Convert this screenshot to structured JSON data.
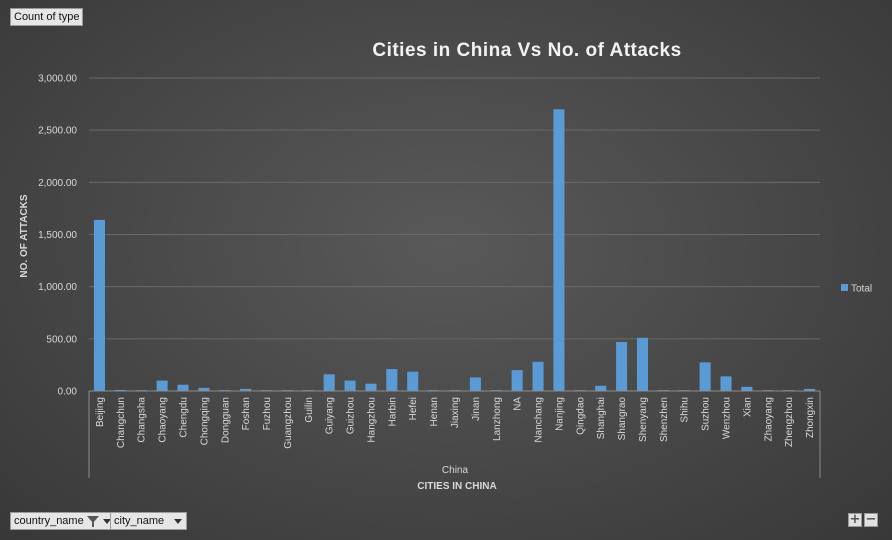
{
  "pivot": {
    "value_field": "Count of type",
    "row_fields": [
      "country_name",
      "city_name"
    ]
  },
  "chart_data": {
    "type": "bar",
    "title": "Cities in China Vs No. of Attacks",
    "xlabel": "CITIES IN CHINA",
    "ylabel": "NO. OF ATTACKS",
    "group_label": "China",
    "ylim": [
      0,
      3000
    ],
    "yticks": [
      "0.00",
      "500.00",
      "1,000.00",
      "1,500.00",
      "2,000.00",
      "2,500.00",
      "3,000.00"
    ],
    "grid": true,
    "legend_position": "right",
    "series": [
      {
        "name": "Total",
        "color": "#5b9bd5"
      }
    ],
    "categories": [
      "Beijing",
      "Changchun",
      "Changsha",
      "Chaoyang",
      "Chengdu",
      "Chongqing",
      "Dongguan",
      "Foshan",
      "Fuzhou",
      "Guangzhou",
      "Guilin",
      "Guiyang",
      "Guizhou",
      "Hangzhou",
      "Harbin",
      "Hefei",
      "Henan",
      "Jiaxing",
      "Jinan",
      "Lanzhong",
      "NA",
      "Nanchang",
      "Nanjing",
      "Qingdao",
      "Shanghai",
      "Shangrao",
      "Shenyang",
      "Shenzhen",
      "Shihu",
      "Suzhou",
      "Wenzhou",
      "Xian",
      "Zhaoyang",
      "Zhengzhou",
      "Zhongxin"
    ],
    "values": [
      1640,
      10,
      8,
      100,
      60,
      30,
      8,
      20,
      8,
      8,
      8,
      160,
      100,
      70,
      210,
      185,
      8,
      8,
      130,
      8,
      200,
      280,
      2700,
      8,
      50,
      470,
      510,
      8,
      8,
      275,
      140,
      40,
      8,
      8,
      20
    ]
  }
}
